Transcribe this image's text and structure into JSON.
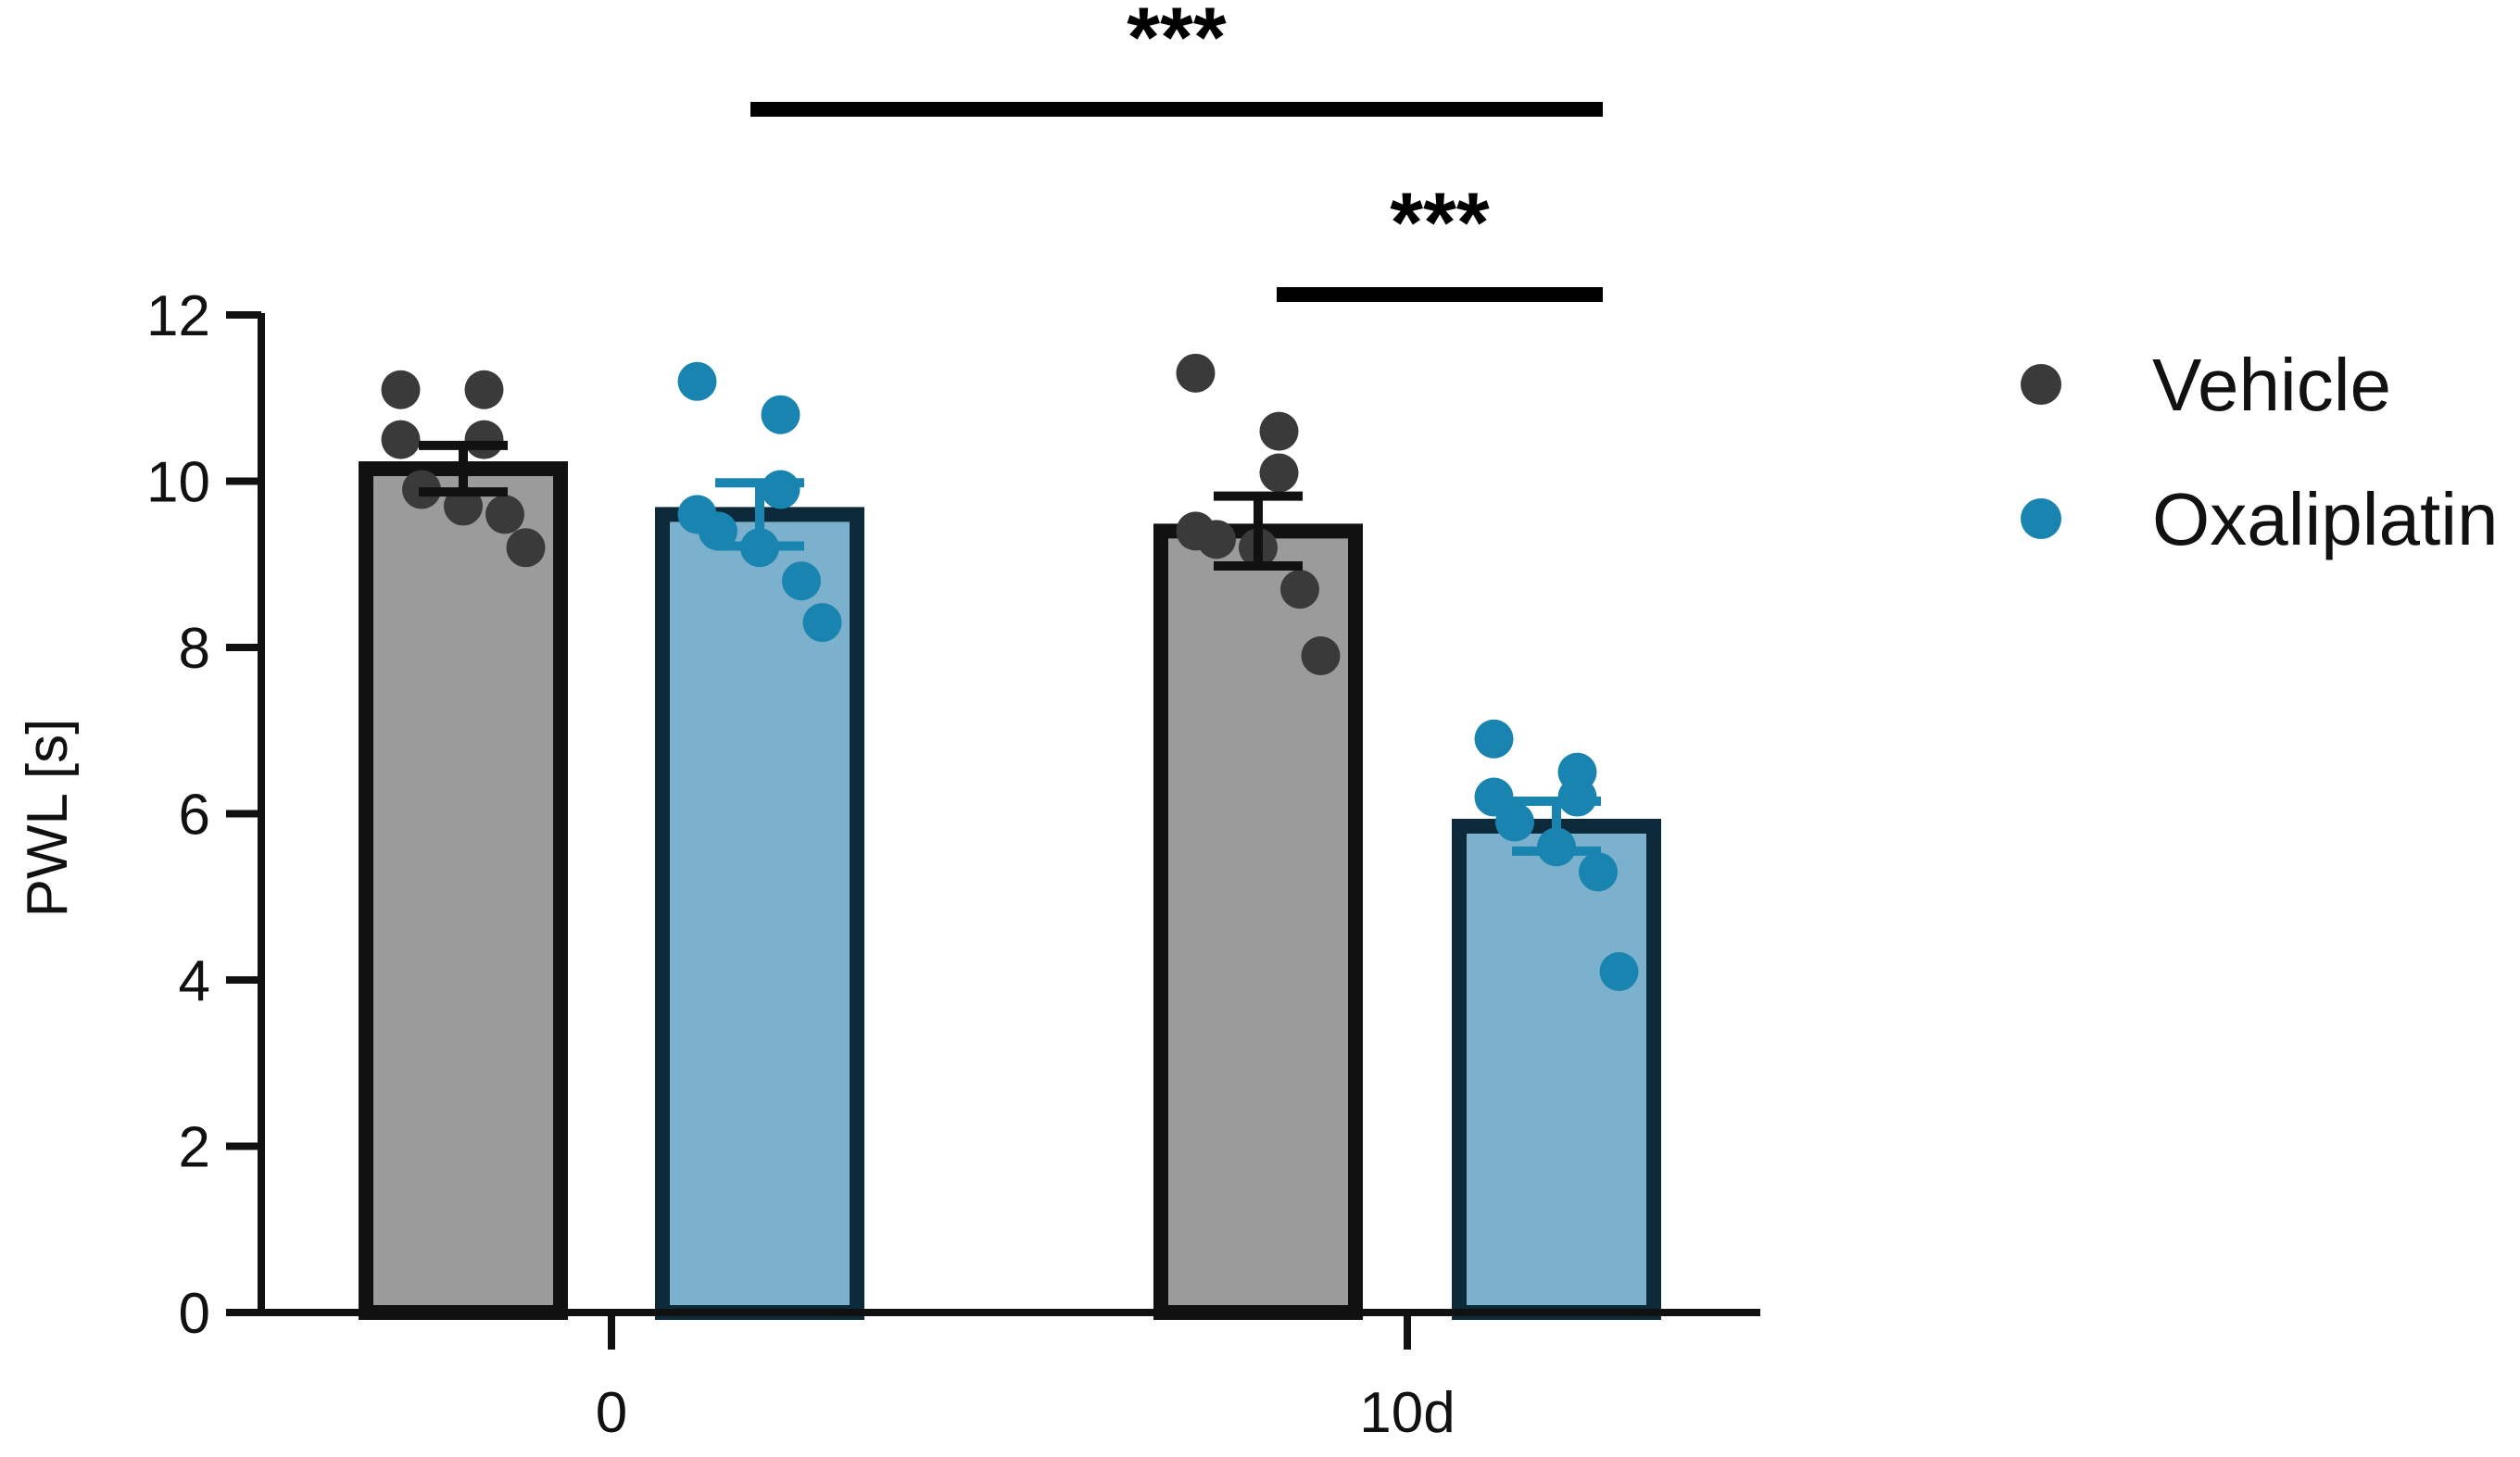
{
  "chart_data": {
    "type": "bar",
    "title": "",
    "xlabel": "",
    "ylabel": "PWL [s]",
    "categories": [
      "0",
      "10d"
    ],
    "ylim": [
      0,
      12
    ],
    "yticks": [
      0,
      2,
      4,
      6,
      8,
      10,
      12
    ],
    "grid": false,
    "legend_position": "right",
    "series": [
      {
        "name": "Vehicle",
        "color": "#3a3a3a",
        "bar_color": "#9b9b9b",
        "edge_color": "#111111",
        "values": [
          10.15,
          9.4
        ],
        "sem": [
          0.28,
          0.42
        ],
        "points": [
          [
            11.1,
            11.1,
            10.5,
            10.5,
            9.9,
            9.7,
            9.6,
            9.2
          ],
          [
            11.3,
            10.6,
            10.1,
            9.4,
            9.3,
            9.2,
            8.7,
            7.9
          ]
        ]
      },
      {
        "name": "Oxaliplatin",
        "color": "#1a84b0",
        "bar_color": "#7bb1cc",
        "edge_color": "#0d2a3a",
        "values": [
          9.6,
          5.85
        ],
        "sem": [
          0.38,
          0.3
        ],
        "points": [
          [
            11.2,
            10.8,
            9.9,
            9.6,
            9.4,
            9.2,
            8.8,
            8.3
          ],
          [
            6.9,
            6.5,
            6.2,
            6.2,
            5.9,
            5.6,
            5.3,
            4.1
          ]
        ]
      }
    ],
    "annotations": [
      {
        "text": "***",
        "from": "Vehicle 0",
        "to": "Oxaliplatin 10d"
      },
      {
        "text": "***",
        "from": "Vehicle 10d",
        "to": "Oxaliplatin 10d"
      }
    ]
  }
}
